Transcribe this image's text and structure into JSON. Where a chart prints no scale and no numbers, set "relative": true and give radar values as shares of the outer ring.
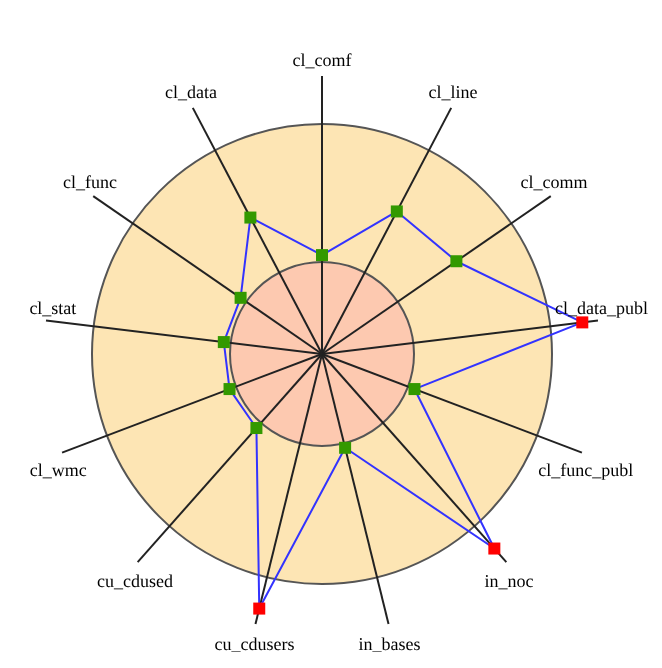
{
  "chart_data": {
    "type": "radar",
    "relative": true,
    "categories": [
      "cl_comf",
      "cl_line",
      "cl_comm",
      "cl_data_publ",
      "cl_func_publ",
      "in_noc",
      "in_bases",
      "cu_cdusers",
      "cu_cdused",
      "cl_wmc",
      "cl_stat",
      "cl_func",
      "cl_data"
    ],
    "series": [
      {
        "color": "#3333ff",
        "marker": "square",
        "values": [
          0.43,
          0.7,
          0.71,
          1.14,
          0.43,
          1.13,
          0.42,
          1.14,
          0.43,
          0.43,
          0.43,
          0.43,
          0.67
        ],
        "colors": [
          "#339900",
          "#339900",
          "#339900",
          "#ff0000",
          "#339900",
          "#ff0000",
          "#339900",
          "#ff0000",
          "#339900",
          "#339900",
          "#339900",
          "#339900",
          "#339900"
        ]
      }
    ],
    "legend": false
  }
}
